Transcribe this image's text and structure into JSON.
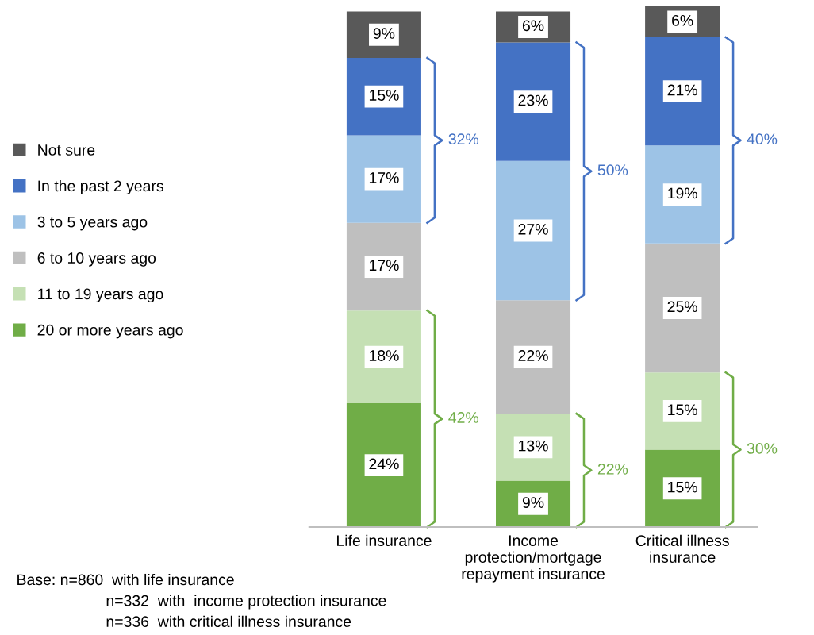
{
  "chart_data": {
    "type": "bar",
    "stacked": true,
    "legend": "left",
    "categories": [
      "Life insurance",
      "Income\nprotection/mortgage\nrepayment insurance",
      "Critical illness\ninsurance"
    ],
    "series": [
      {
        "name": "20 or more years ago",
        "color": "#70ad47",
        "values": [
          24,
          9,
          15
        ],
        "value_labels": [
          "24%",
          "9%",
          "15%"
        ]
      },
      {
        "name": "11 to 19 years ago",
        "color": "#c5e0b4",
        "values": [
          18,
          13,
          15
        ],
        "value_labels": [
          "18%",
          "13%",
          "15%"
        ]
      },
      {
        "name": "6 to 10 years ago",
        "color": "#bfbfbf",
        "values": [
          17,
          22,
          25
        ],
        "value_labels": [
          "17%",
          "22%",
          "25%"
        ]
      },
      {
        "name": "3 to 5 years ago",
        "color": "#9dc3e6",
        "values": [
          17,
          27,
          19
        ],
        "value_labels": [
          "17%",
          "27%",
          "19%"
        ]
      },
      {
        "name": "In the past 2 years",
        "color": "#4472c4",
        "values": [
          15,
          23,
          21
        ],
        "value_labels": [
          "15%",
          "23%",
          "21%"
        ]
      },
      {
        "name": "Not sure",
        "color": "#595959",
        "values": [
          9,
          6,
          6
        ],
        "value_labels": [
          "9%",
          "6%",
          "6%"
        ]
      }
    ],
    "annotations": [
      "32%",
      "42%",
      "50%",
      "22%",
      "40%",
      "30%",
      "Base: n=860  with life insurance",
      "n=332  with  income protection insurance",
      "n=336  with critical illness insurance"
    ]
  }
}
